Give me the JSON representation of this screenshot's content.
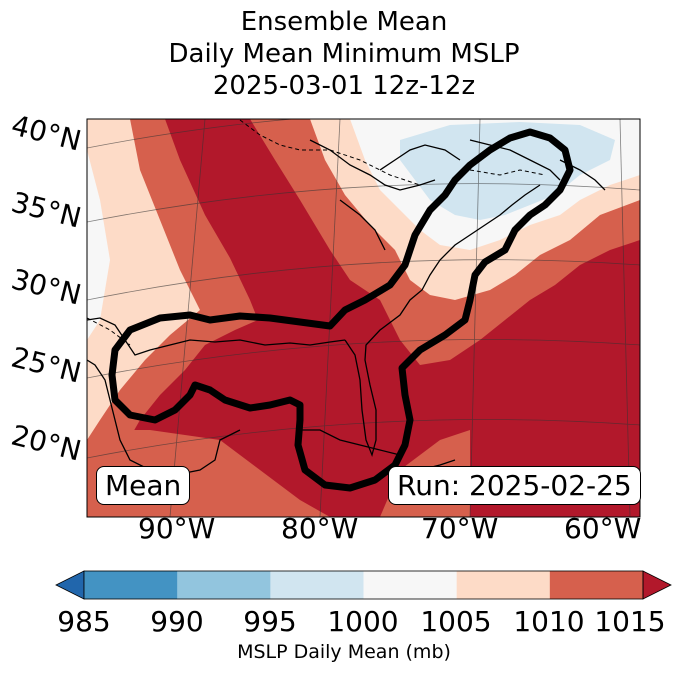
{
  "title": {
    "line1": "Ensemble Mean",
    "line2": "Daily Mean Minimum MSLP",
    "line3": "2025-03-01 12z-12z"
  },
  "lat_labels": [
    "40°N",
    "35°N",
    "30°N",
    "25°N",
    "20°N"
  ],
  "lon_labels": [
    "90°W",
    "80°W",
    "70°W",
    "60°W"
  ],
  "mean_box": "Mean",
  "run_box": "Run: 2025-02-25",
  "colorbar": {
    "ticks": [
      "985",
      "990",
      "995",
      "1000",
      "1005",
      "1010",
      "1015"
    ],
    "label": "MSLP Daily Mean (mb)",
    "colors": [
      "#2166ac",
      "#4393c3",
      "#92c5de",
      "#d1e5f0",
      "#f7f7f7",
      "#fddbc7",
      "#d6604d",
      "#b2182b"
    ]
  },
  "palette": {
    "deep_red": "#b2182b",
    "red": "#d6604d",
    "salmon": "#fddbc7",
    "white": "#f7f7f7",
    "light_blue": "#d1e5f0",
    "outline": "#000000"
  }
}
